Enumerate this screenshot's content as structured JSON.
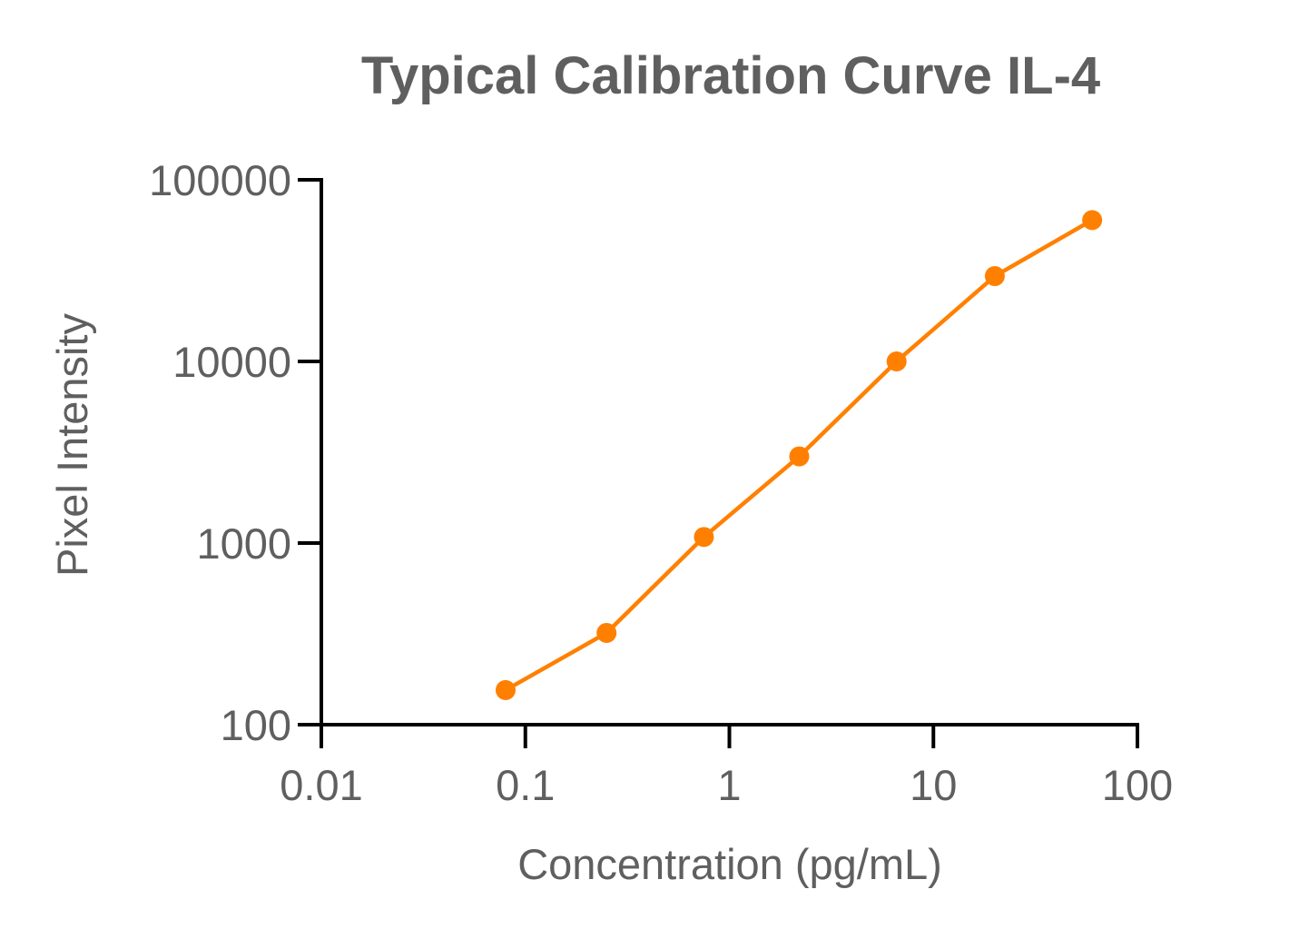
{
  "chart_data": {
    "type": "line",
    "title": "Typical Calibration Curve IL-4",
    "xlabel": "Concentration (pg/mL)",
    "ylabel": "Pixel Intensity",
    "x_scale": "log",
    "y_scale": "log",
    "xlim": [
      0.01,
      100
    ],
    "ylim": [
      100,
      100000
    ],
    "x_ticks": [
      "0.01",
      "0.1",
      "1",
      "10",
      "100"
    ],
    "y_ticks": [
      "100",
      "1000",
      "10000",
      "100000"
    ],
    "grid": false,
    "series": [
      {
        "color": "#ff8000",
        "marker": "circle",
        "x": [
          0.08,
          0.25,
          0.75,
          2.2,
          6.6,
          20,
          60
        ],
        "y": [
          155,
          320,
          1080,
          3000,
          10000,
          29500,
          60000
        ]
      }
    ]
  }
}
